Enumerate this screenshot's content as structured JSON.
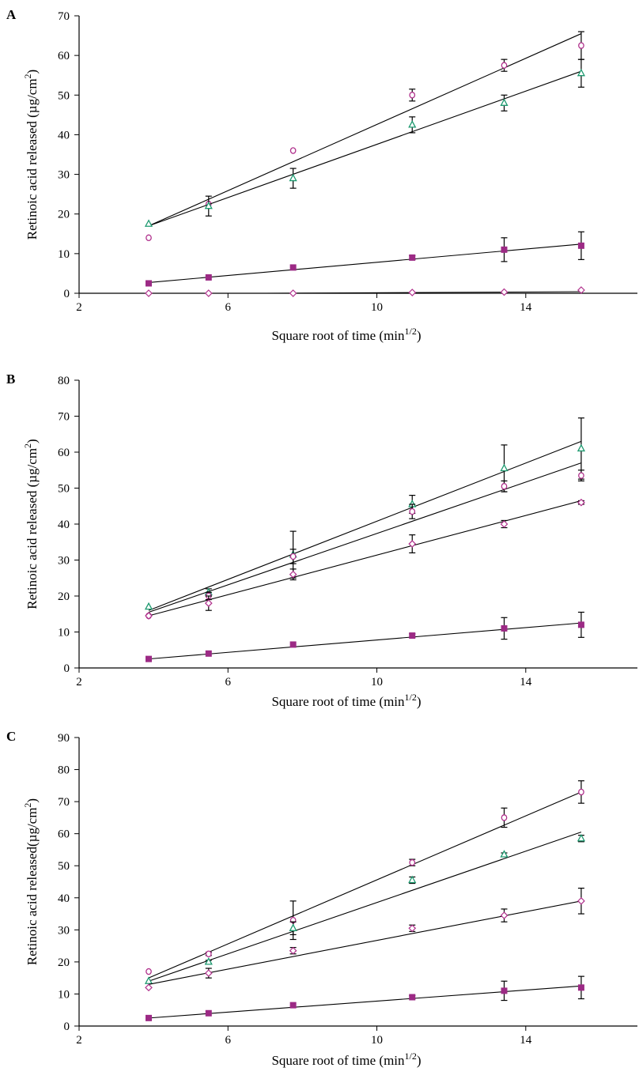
{
  "chart_data": [
    {
      "type": "scatter",
      "panel_label": "A",
      "xlabel": "Square root of time (min",
      "xlabel_sup": "1/2",
      "xlabel_tail": ")",
      "ylabel": "Retinoic acid released (µg/cm",
      "ylabel_sup": "2",
      "ylabel_tail": ")",
      "xlim": [
        2,
        17
      ],
      "ylim": [
        0,
        70
      ],
      "xticks": [
        2,
        6,
        10,
        14
      ],
      "yticks": [
        0,
        10,
        20,
        30,
        40,
        50,
        60,
        70
      ],
      "grid": false,
      "legend": "none",
      "x": [
        3.87,
        5.48,
        7.75,
        10.95,
        13.42,
        15.49
      ],
      "series": [
        {
          "marker": "circle",
          "color": "#b0308c",
          "values": [
            14,
            22.5,
            36,
            50,
            57.5,
            62.5
          ],
          "errors": [
            0,
            0,
            0,
            1.5,
            1.5,
            3.5
          ],
          "fit": [
            [
              3.87,
              17
            ],
            [
              15.49,
              65.5
            ]
          ]
        },
        {
          "marker": "triangle",
          "color": "#1e9a70",
          "values": [
            17.5,
            22,
            29,
            42.5,
            48,
            55.5
          ],
          "errors": [
            0,
            2.5,
            2.5,
            2,
            2,
            3.5
          ],
          "fit": [
            [
              3.87,
              17
            ],
            [
              15.49,
              56
            ]
          ]
        },
        {
          "marker": "square",
          "color": "#9c2a85",
          "values": [
            2.5,
            4,
            6.5,
            9,
            11,
            12
          ],
          "errors": [
            0,
            0,
            0,
            0.5,
            3,
            3.5
          ],
          "fit": [
            [
              3.87,
              2.7
            ],
            [
              15.49,
              12.4
            ]
          ]
        },
        {
          "marker": "diamond",
          "color": "#b0308c",
          "values": [
            0,
            0,
            0,
            0.2,
            0.3,
            0.8
          ],
          "errors": [
            0,
            0,
            0,
            0,
            0,
            0
          ],
          "fit": [
            [
              7,
              0
            ],
            [
              15.49,
              0.4
            ]
          ]
        }
      ]
    },
    {
      "type": "scatter",
      "panel_label": "B",
      "xlabel": "Square root of time (min",
      "xlabel_sup": "1/2",
      "xlabel_tail": ")",
      "ylabel": "Retinoic acid released (µg/cm",
      "ylabel_sup": "2",
      "ylabel_tail": ")",
      "xlim": [
        2,
        17
      ],
      "ylim": [
        0,
        80
      ],
      "xticks": [
        2,
        6,
        10,
        14
      ],
      "yticks": [
        0,
        10,
        20,
        30,
        40,
        50,
        60,
        70,
        80
      ],
      "grid": false,
      "legend": "none",
      "x": [
        3.87,
        5.48,
        7.75,
        10.95,
        13.42,
        15.49
      ],
      "series": [
        {
          "marker": "triangle",
          "color": "#1e9a70",
          "values": [
            17,
            21,
            31.5,
            45.5,
            55.5,
            61
          ],
          "errors": [
            0,
            1,
            6.5,
            2.5,
            6.5,
            8.5
          ],
          "fit": [
            [
              3.87,
              16
            ],
            [
              15.49,
              63
            ]
          ]
        },
        {
          "marker": "circle",
          "color": "#b0308c",
          "values": [
            14.5,
            20,
            31,
            43.5,
            50.5,
            53.5
          ],
          "errors": [
            0,
            1,
            2,
            2,
            1.5,
            1.5
          ],
          "fit": [
            [
              3.87,
              15.5
            ],
            [
              15.49,
              57
            ]
          ]
        },
        {
          "marker": "diamond",
          "color": "#b0308c",
          "values": [
            14.5,
            18,
            26,
            34.5,
            40,
            46
          ],
          "errors": [
            0,
            2,
            1.5,
            2.5,
            1,
            0.5
          ],
          "fit": [
            [
              3.87,
              14.5
            ],
            [
              15.49,
              46.5
            ]
          ]
        },
        {
          "marker": "square",
          "color": "#9c2a85",
          "values": [
            2.5,
            4,
            6.5,
            9,
            11,
            12
          ],
          "errors": [
            0,
            0,
            0,
            0.5,
            3,
            3.5
          ],
          "fit": [
            [
              3.87,
              2.5
            ],
            [
              15.49,
              12.5
            ]
          ]
        }
      ]
    },
    {
      "type": "scatter",
      "panel_label": "C",
      "xlabel": "Square root of time (min",
      "xlabel_sup": "1/2",
      "xlabel_tail": ")",
      "ylabel": "Retinoic acid released(µg/cm",
      "ylabel_sup": "2",
      "ylabel_tail": ")",
      "xlim": [
        2,
        17
      ],
      "ylim": [
        0,
        90
      ],
      "xticks": [
        2,
        6,
        10,
        14
      ],
      "yticks": [
        0,
        10,
        20,
        30,
        40,
        50,
        60,
        70,
        80,
        90
      ],
      "grid": false,
      "legend": "none",
      "x": [
        3.87,
        5.48,
        7.75,
        10.95,
        13.42,
        15.49
      ],
      "series": [
        {
          "marker": "circle",
          "color": "#b0308c",
          "values": [
            17,
            22.5,
            33,
            51,
            65,
            73
          ],
          "errors": [
            0,
            0.5,
            6,
            1,
            3,
            3.5
          ],
          "fit": [
            [
              3.87,
              15
            ],
            [
              15.49,
              73
            ]
          ]
        },
        {
          "marker": "triangle",
          "color": "#1e9a70",
          "values": [
            14,
            20,
            30.5,
            45.5,
            53.5,
            58.5
          ],
          "errors": [
            0,
            0.5,
            2,
            1,
            0.5,
            1
          ],
          "fit": [
            [
              3.87,
              14
            ],
            [
              15.49,
              60.5
            ]
          ]
        },
        {
          "marker": "diamond",
          "color": "#b0308c",
          "values": [
            12,
            16.5,
            23.5,
            30.5,
            34.5,
            39
          ],
          "errors": [
            0,
            1.5,
            1,
            1,
            2,
            4
          ],
          "fit": [
            [
              3.87,
              13
            ],
            [
              15.49,
              39
            ]
          ]
        },
        {
          "marker": "square",
          "color": "#9c2a85",
          "values": [
            2.5,
            4,
            6.5,
            9,
            11,
            12
          ],
          "errors": [
            0,
            0,
            0,
            0.5,
            3,
            3.5
          ],
          "fit": [
            [
              3.87,
              2.5
            ],
            [
              15.49,
              12.5
            ]
          ]
        }
      ]
    }
  ]
}
